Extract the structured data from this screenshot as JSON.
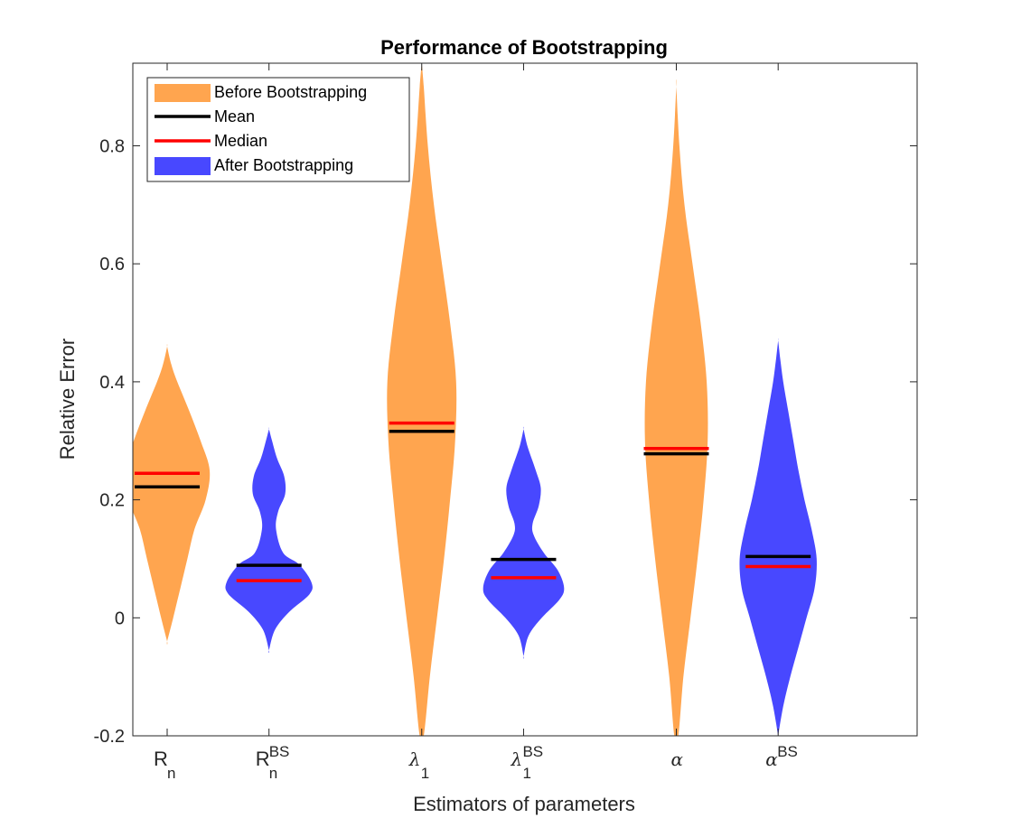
{
  "chart_data": {
    "type": "violin",
    "title": "Performance of Bootstrapping",
    "xlabel": "Estimators of parameters",
    "ylabel": "Relative Error",
    "ylim": [
      -0.2,
      0.94
    ],
    "yticks": [
      -0.2,
      0,
      0.2,
      0.4,
      0.6,
      0.8
    ],
    "ytick_labels": [
      "-0.2",
      "0",
      "0.2",
      "0.4",
      "0.6",
      "0.8"
    ],
    "grid": false,
    "legend_position": "top-left",
    "legend": [
      {
        "label": "Before Bootstrapping",
        "kind": "patch",
        "color": "#ffa54f"
      },
      {
        "label": "Mean",
        "kind": "line",
        "color": "#000000"
      },
      {
        "label": "Median",
        "kind": "line",
        "color": "#ff0000"
      },
      {
        "label": "After Bootstrapping",
        "kind": "patch",
        "color": "#4848ff"
      }
    ],
    "colors": {
      "before": "#ffa54f",
      "after": "#4848ff",
      "mean": "#000000",
      "median": "#ff0000"
    },
    "categories": [
      {
        "base": "R",
        "greek": false,
        "sub": "n",
        "sup": "",
        "x": 1,
        "group": "before",
        "mean": 0.222,
        "median": 0.245,
        "density": [
          [
            -0.04,
            0
          ],
          [
            0,
            0.06
          ],
          [
            0.05,
            0.13
          ],
          [
            0.1,
            0.2
          ],
          [
            0.15,
            0.27
          ],
          [
            0.2,
            0.38
          ],
          [
            0.25,
            0.42
          ],
          [
            0.3,
            0.33
          ],
          [
            0.35,
            0.22
          ],
          [
            0.4,
            0.1
          ],
          [
            0.43,
            0.04
          ],
          [
            0.46,
            0
          ]
        ]
      },
      {
        "base": "R",
        "greek": false,
        "sub": "n",
        "sup": "BS",
        "x": 2,
        "group": "after",
        "mean": 0.089,
        "median": 0.063,
        "density": [
          [
            -0.055,
            0
          ],
          [
            -0.02,
            0.06
          ],
          [
            0.01,
            0.2
          ],
          [
            0.04,
            0.4
          ],
          [
            0.06,
            0.42
          ],
          [
            0.09,
            0.3
          ],
          [
            0.11,
            0.14
          ],
          [
            0.15,
            0.07
          ],
          [
            0.18,
            0.09
          ],
          [
            0.21,
            0.16
          ],
          [
            0.24,
            0.15
          ],
          [
            0.27,
            0.08
          ],
          [
            0.3,
            0.03
          ],
          [
            0.32,
            0
          ]
        ]
      },
      {
        "base": "λ",
        "greek": true,
        "sub": "1",
        "sup": "",
        "x": 3.5,
        "group": "before",
        "mean": 0.316,
        "median": 0.33,
        "density": [
          [
            -0.2,
            0.02
          ],
          [
            -0.1,
            0.08
          ],
          [
            0,
            0.15
          ],
          [
            0.1,
            0.22
          ],
          [
            0.2,
            0.28
          ],
          [
            0.3,
            0.33
          ],
          [
            0.4,
            0.34
          ],
          [
            0.5,
            0.28
          ],
          [
            0.6,
            0.2
          ],
          [
            0.7,
            0.12
          ],
          [
            0.8,
            0.06
          ],
          [
            0.9,
            0.02
          ],
          [
            0.94,
            0
          ]
        ]
      },
      {
        "base": "λ",
        "greek": true,
        "sub": "1",
        "sup": "BS",
        "x": 4.5,
        "group": "after",
        "mean": 0.099,
        "median": 0.068,
        "density": [
          [
            -0.065,
            0
          ],
          [
            -0.03,
            0.05
          ],
          [
            0,
            0.18
          ],
          [
            0.03,
            0.35
          ],
          [
            0.05,
            0.4
          ],
          [
            0.08,
            0.34
          ],
          [
            0.11,
            0.2
          ],
          [
            0.14,
            0.1
          ],
          [
            0.16,
            0.09
          ],
          [
            0.19,
            0.15
          ],
          [
            0.22,
            0.17
          ],
          [
            0.25,
            0.12
          ],
          [
            0.29,
            0.04
          ],
          [
            0.32,
            0
          ]
        ]
      },
      {
        "base": "α",
        "greek": true,
        "sub": "",
        "sup": "",
        "x": 6,
        "group": "before",
        "mean": 0.278,
        "median": 0.287,
        "density": [
          [
            -0.2,
            0.02
          ],
          [
            -0.1,
            0.07
          ],
          [
            0,
            0.14
          ],
          [
            0.1,
            0.21
          ],
          [
            0.2,
            0.27
          ],
          [
            0.3,
            0.31
          ],
          [
            0.4,
            0.3
          ],
          [
            0.5,
            0.24
          ],
          [
            0.6,
            0.16
          ],
          [
            0.7,
            0.08
          ],
          [
            0.8,
            0.03
          ],
          [
            0.9,
            0
          ]
        ]
      },
      {
        "base": "α",
        "greek": true,
        "sub": "",
        "sup": "BS",
        "x": 7,
        "group": "after",
        "mean": 0.104,
        "median": 0.087,
        "density": [
          [
            -0.2,
            0
          ],
          [
            -0.15,
            0.05
          ],
          [
            -0.1,
            0.12
          ],
          [
            -0.05,
            0.2
          ],
          [
            0,
            0.28
          ],
          [
            0.05,
            0.36
          ],
          [
            0.1,
            0.38
          ],
          [
            0.15,
            0.33
          ],
          [
            0.2,
            0.26
          ],
          [
            0.25,
            0.2
          ],
          [
            0.3,
            0.15
          ],
          [
            0.35,
            0.1
          ],
          [
            0.4,
            0.05
          ],
          [
            0.44,
            0.02
          ],
          [
            0.47,
            0
          ]
        ]
      }
    ]
  }
}
